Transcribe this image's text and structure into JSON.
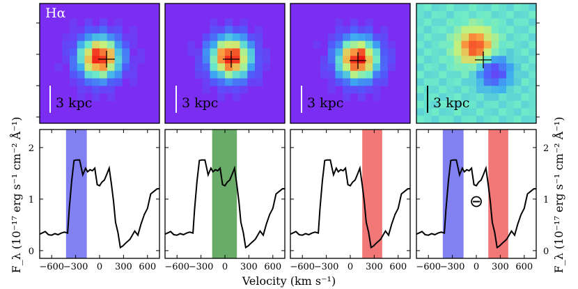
{
  "figure": {
    "line_label": "Hα",
    "scale_bar_label": "3 kpc",
    "xlabel": "Velocity (km s⁻¹)",
    "ylabel_left": "F_λ (10⁻¹⁷ erg s⁻¹ cm⁻² Å⁻¹)",
    "ylabel_right": "F_λ (10⁻¹⁷ erg s⁻¹ cm⁻² Å⁻¹)",
    "map_panels": [
      {
        "name": "blue-wing-map",
        "colormap": "rainbow",
        "peak_offset": [
          0.0,
          0.0
        ],
        "has_scale_label": true
      },
      {
        "name": "line-core-map",
        "colormap": "rainbow",
        "peak_offset": [
          0.0,
          0.0
        ],
        "has_scale_label": true
      },
      {
        "name": "red-wing-map",
        "colormap": "rainbow",
        "peak_offset": [
          0.0,
          0.0
        ],
        "has_scale_label": true
      },
      {
        "name": "difference-map",
        "colormap": "rainbow",
        "peak_offset": [
          -0.3,
          -0.3
        ],
        "has_scale_label": true
      }
    ],
    "colors": {
      "blue_band": "#6b6bf0",
      "green_band": "#4f9e4f",
      "red_band": "#f06060",
      "spectrum_line": "#000000"
    }
  },
  "chart_data": {
    "type": "line",
    "xlabel": "Velocity (km s⁻¹)",
    "ylabel": "F_λ (10⁻¹⁷ erg s⁻¹ cm⁻² Å⁻¹)",
    "xlim": [
      -750,
      750
    ],
    "ylim": [
      -0.15,
      2.35
    ],
    "xticks": [
      -600,
      -300,
      0,
      300,
      600
    ],
    "xtick_labels": [
      "−600",
      "−300",
      "0",
      "300",
      "600"
    ],
    "yticks": [
      0,
      1,
      2
    ],
    "ytick_labels": [
      "0",
      "1",
      "2"
    ],
    "series": [
      {
        "name": "spectrum",
        "x": [
          -750,
          -720,
          -680,
          -640,
          -600,
          -560,
          -520,
          -480,
          -440,
          -400,
          -380,
          -350,
          -320,
          -290,
          -250,
          -210,
          -175,
          -150,
          -120,
          -90,
          -60,
          -30,
          0,
          30,
          60,
          90,
          120,
          150,
          175,
          200,
          230,
          260,
          290,
          330,
          380,
          440,
          480,
          520,
          560,
          600,
          640,
          680,
          720,
          750
        ],
        "y": [
          0.32,
          0.34,
          0.37,
          0.31,
          0.3,
          0.33,
          0.31,
          0.34,
          0.36,
          0.34,
          0.8,
          1.35,
          1.75,
          1.76,
          1.76,
          1.47,
          1.6,
          1.53,
          1.57,
          1.55,
          1.6,
          1.28,
          1.26,
          1.33,
          1.37,
          1.48,
          1.6,
          1.27,
          0.95,
          0.55,
          0.35,
          0.06,
          0.09,
          0.15,
          0.22,
          0.38,
          0.3,
          0.52,
          0.7,
          0.82,
          1.1,
          1.15,
          1.2,
          1.2
        ]
      }
    ],
    "panels": [
      {
        "name": "blue-wing",
        "bands": [
          {
            "from": -420,
            "to": -160,
            "color": "blue"
          }
        ],
        "marker": ""
      },
      {
        "name": "line-core",
        "bands": [
          {
            "from": -160,
            "to": 150,
            "color": "green"
          }
        ],
        "marker": ""
      },
      {
        "name": "red-wing",
        "bands": [
          {
            "from": 150,
            "to": 400,
            "color": "red"
          }
        ],
        "marker": ""
      },
      {
        "name": "blue-minus-red",
        "bands": [
          {
            "from": -420,
            "to": -160,
            "color": "blue"
          },
          {
            "from": 150,
            "to": 400,
            "color": "red"
          }
        ],
        "marker": "⊖"
      }
    ]
  }
}
